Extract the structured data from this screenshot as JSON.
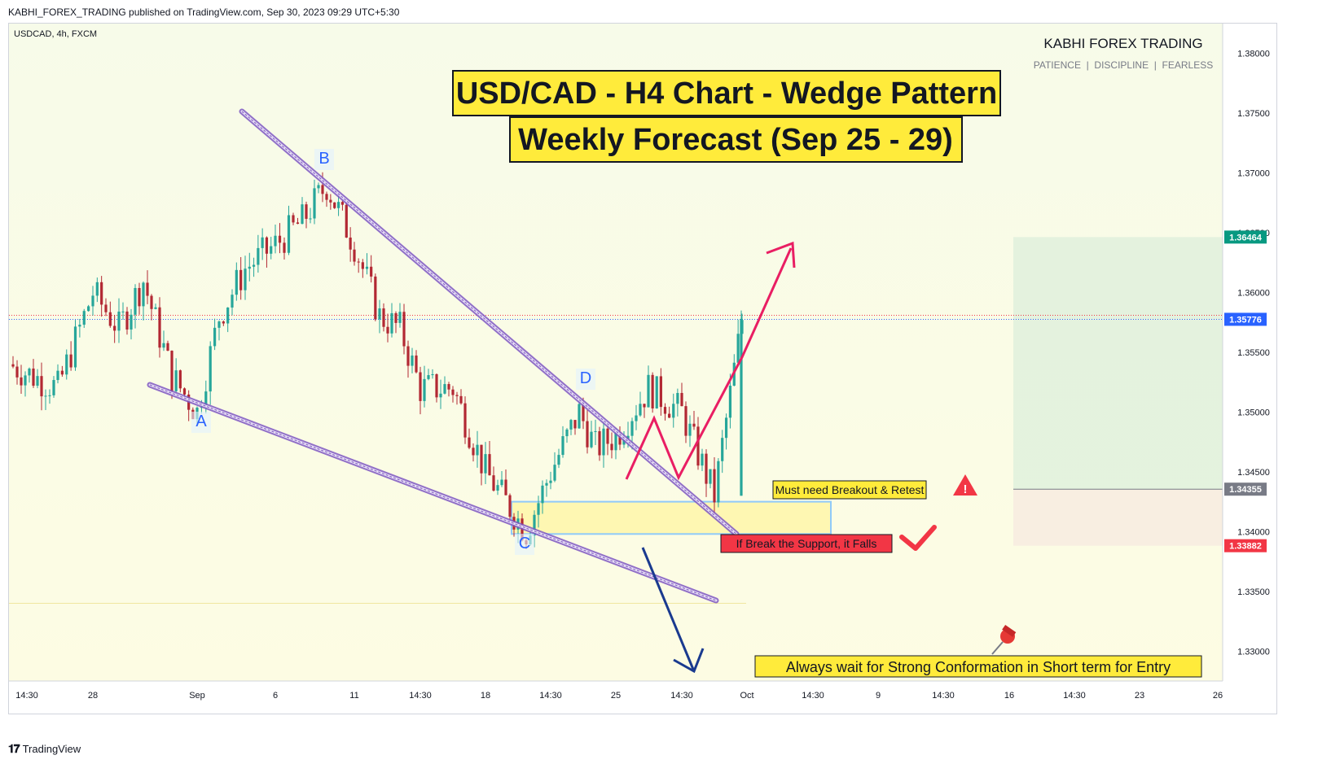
{
  "published_line": "KABHI_FOREX_TRADING published on TradingView.com, Sep 30, 2023 09:29 UTC+5:30",
  "symbol_line": "USDCAD, 4h, FXCM",
  "brand": {
    "name": "KABHI FOREX TRADING",
    "tagline": "PATIENCE  |  DISCIPLINE  |  FEARLESS"
  },
  "title_main": "USD/CAD - H4 Chart - Wedge Pattern",
  "title_sub": "Weekly Forecast (Sep 25 - 29)",
  "wave_labels": [
    "A",
    "B",
    "C",
    "D"
  ],
  "callouts": {
    "breakout": "Must need Breakout & Retest",
    "break_support": "If Break the Support, it Falls",
    "entry_note": "Always wait for Strong Conformation in Short term for Entry"
  },
  "price_tags": {
    "target": "1.36464",
    "current": "1.35776",
    "entry": "1.34355",
    "stop": "1.33882"
  },
  "footer": "TradingView",
  "colors": {
    "bull": "#26a69a",
    "bear": "#b22833",
    "wedge": "#7e57c2",
    "up_arrow": "#e91e63",
    "down_arrow": "#1a3a8f",
    "title_bg": "#ffeb3b",
    "target_tag": "#089981",
    "current_tag": "#2962ff",
    "entry_tag": "#787b86",
    "stop_tag": "#f23645"
  },
  "chart_data": {
    "type": "candlestick",
    "title": "USD/CAD - H4 Chart - Wedge Pattern",
    "ylim": [
      1.3275,
      1.3825
    ],
    "y_ticks": [
      "1.38000",
      "1.37500",
      "1.37000",
      "1.36500",
      "1.36000",
      "1.35500",
      "1.35000",
      "1.34500",
      "1.34000",
      "1.33500",
      "1.33000"
    ],
    "x_ticks": [
      "14:30",
      "28",
      "Sep",
      "6",
      "11",
      "14:30",
      "18",
      "14:30",
      "25",
      "14:30",
      "Oct",
      "14:30",
      "9",
      "14:30",
      "16",
      "14:30",
      "23",
      "26"
    ],
    "price_path": [
      [
        "Aug 24",
        1.354
      ],
      [
        "Aug 25",
        1.352
      ],
      [
        "Aug 28",
        1.36
      ],
      [
        "Aug 29",
        1.357
      ],
      [
        "Aug 30",
        1.361
      ],
      [
        "Aug 31",
        1.353
      ],
      [
        "Sep 01",
        1.35
      ],
      [
        "Sep 04",
        1.358
      ],
      [
        "Sep 05",
        1.362
      ],
      [
        "Sep 06",
        1.364
      ],
      [
        "Sep 07",
        1.366
      ],
      [
        "Sep 08",
        1.369
      ],
      [
        "Sep 11",
        1.364
      ],
      [
        "Sep 12",
        1.358
      ],
      [
        "Sep 13",
        1.357
      ],
      [
        "Sep 14",
        1.352
      ],
      [
        "Sep 15",
        1.352
      ],
      [
        "Sep 18",
        1.345
      ],
      [
        "Sep 19",
        1.34
      ],
      [
        "Sep 20",
        1.345
      ],
      [
        "Sep 21",
        1.35
      ],
      [
        "Sep 22",
        1.347
      ],
      [
        "Sep 25",
        1.348
      ],
      [
        "Sep 26",
        1.352
      ],
      [
        "Sep 27",
        1.35
      ],
      [
        "Sep 28",
        1.343
      ],
      [
        "Sep 29",
        1.3578
      ]
    ],
    "wedge_upper": [
      [
        "Sep 06",
        1.3755
      ],
      [
        "Sep 29",
        1.3398
      ]
    ],
    "wedge_lower": [
      [
        "Aug 31",
        1.3522
      ],
      [
        "Sep 29",
        1.334
      ]
    ],
    "support_zone": [
      1.3398,
      1.3425
    ],
    "annotations": [
      "Must need Breakout & Retest",
      "If Break the Support, it Falls",
      "Always wait for Strong Conformation in Short term for Entry"
    ]
  }
}
